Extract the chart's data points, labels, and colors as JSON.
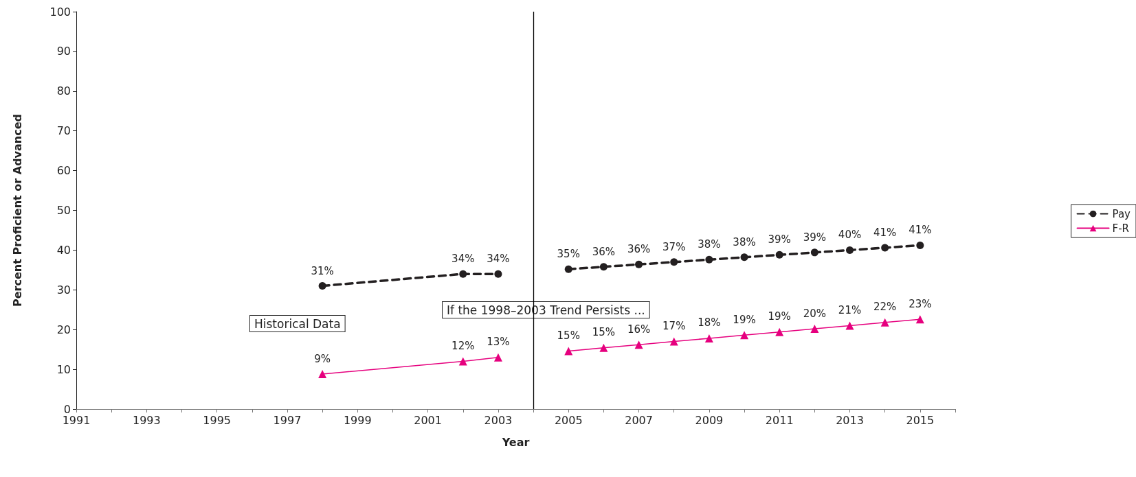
{
  "chart_data": {
    "type": "line",
    "xlabel": "Year",
    "ylabel": "Percent Proficient or Advanced",
    "x": [
      1998,
      2002,
      2003,
      2004,
      2005,
      2006,
      2007,
      2008,
      2009,
      2010,
      2011,
      2012,
      2013,
      2014,
      2015
    ],
    "series": [
      {
        "name": "Pay",
        "color": "#231f20",
        "marker": "circle",
        "line_style": "dashed",
        "values": [
          31,
          34,
          34,
          null,
          35.2,
          35.8,
          36.4,
          37,
          37.6,
          38.2,
          38.8,
          39.4,
          40,
          40.6,
          41.2
        ],
        "value_labels": [
          "31%",
          "34%",
          "34%",
          null,
          "35%",
          "36%",
          "36%",
          "37%",
          "38%",
          "38%",
          "39%",
          "39%",
          "40%",
          "41%",
          "41%"
        ]
      },
      {
        "name": "F-R",
        "color": "#e6007e",
        "marker": "triangle",
        "line_style": "solid",
        "values": [
          8.8,
          12,
          13,
          null,
          14.6,
          15.4,
          16.2,
          17,
          17.8,
          18.6,
          19.4,
          20.2,
          21,
          21.8,
          22.6
        ],
        "value_labels": [
          "9%",
          "12%",
          "13%",
          null,
          "15%",
          "15%",
          "16%",
          "17%",
          "18%",
          "19%",
          "19%",
          "20%",
          "21%",
          "22%",
          "23%"
        ]
      }
    ],
    "xlim": [
      1991,
      2016
    ],
    "xticks": [
      1991,
      {
        "value": 1992,
        "label": null
      },
      1993,
      {
        "value": 1994,
        "label": null
      },
      1995,
      {
        "value": 1996,
        "label": null
      },
      1997,
      {
        "value": 1998,
        "label": null
      },
      1999,
      {
        "value": 2000,
        "label": null
      },
      2001,
      {
        "value": 2002,
        "label": null
      },
      2003,
      {
        "value": 2004,
        "label": null
      },
      2005,
      {
        "value": 2006,
        "label": null
      },
      2007,
      {
        "value": 2008,
        "label": null
      },
      2009,
      {
        "value": 2010,
        "label": null
      },
      2011,
      {
        "value": 2012,
        "label": null
      },
      2013,
      {
        "value": 2014,
        "label": null
      },
      2015,
      {
        "value": 2016,
        "label": null
      }
    ],
    "ylim": [
      0,
      100
    ],
    "yticks": [
      0,
      10,
      20,
      30,
      40,
      50,
      60,
      70,
      80,
      90,
      100
    ],
    "ref_lines": [
      {
        "axis": "x",
        "value": 2004,
        "color": "#000000"
      }
    ],
    "annotations": [
      "Historical Data",
      "If the 1998–2003 Trend Persists ..."
    ],
    "grid": false,
    "legend": "right"
  }
}
